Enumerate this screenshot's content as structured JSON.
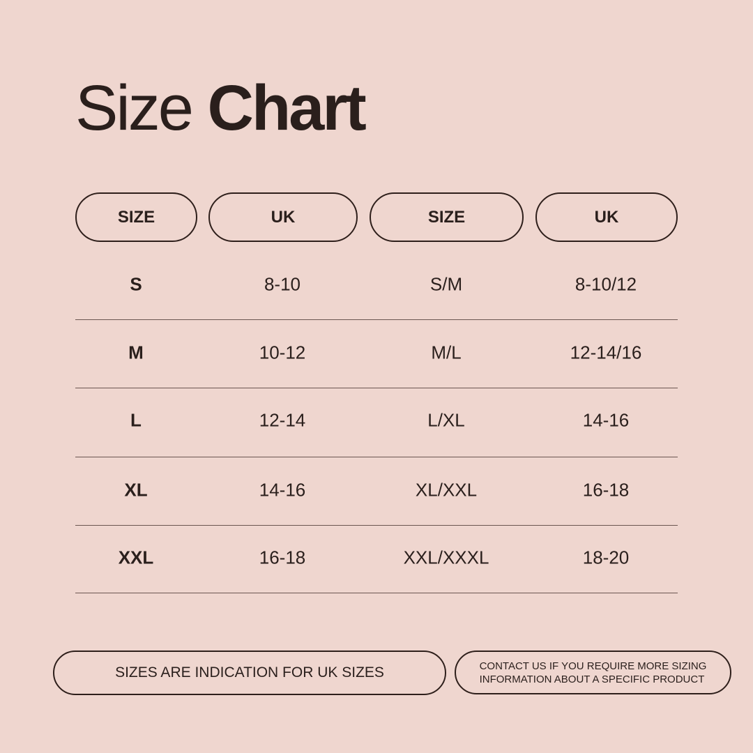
{
  "title": {
    "light": "Size",
    "bold": "Chart"
  },
  "headers": [
    "SIZE",
    "UK",
    "SIZE",
    "UK"
  ],
  "rows": [
    [
      "S",
      "8-10",
      "S/M",
      "8-10/12"
    ],
    [
      "M",
      "10-12",
      "M/L",
      "12-14/16"
    ],
    [
      "L",
      "12-14",
      "L/XL",
      "14-16"
    ],
    [
      "XL",
      "14-16",
      "XL/XXL",
      "16-18"
    ],
    [
      "XXL",
      "16-18",
      "XXL/XXXL",
      "18-20"
    ]
  ],
  "notes": {
    "left": "SIZES ARE INDICATION FOR UK SIZES",
    "right_line1": "CONTACT US IF YOU REQUIRE MORE SIZING",
    "right_line2": "INFORMATION ABOUT A SPECIFIC PRODUCT"
  },
  "colors": {
    "background": "#efd6cf",
    "text": "#2a1f1c"
  }
}
